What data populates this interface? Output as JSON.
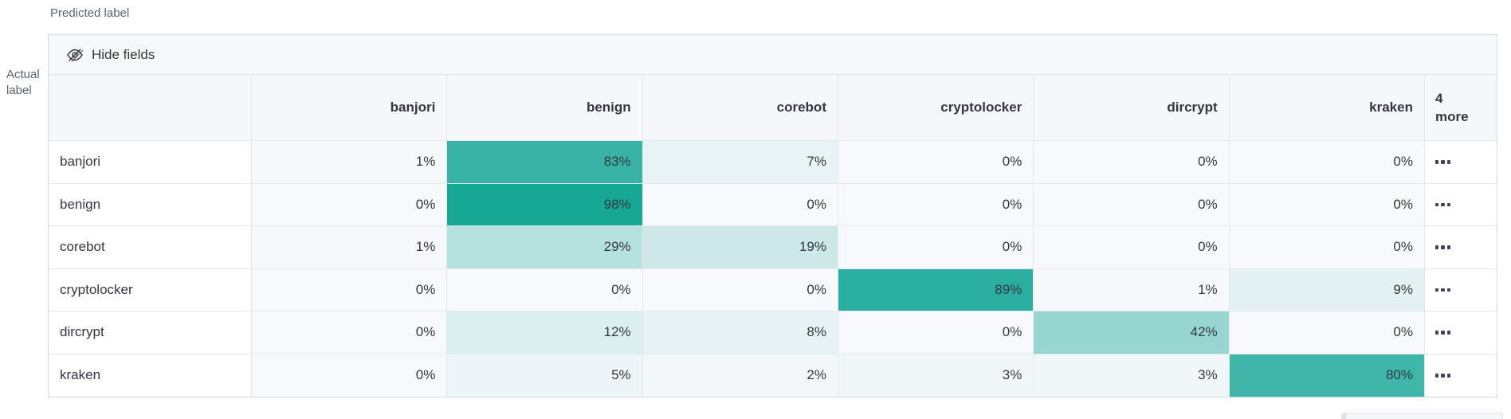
{
  "axes": {
    "predicted_label": "Predicted label",
    "actual_label_line1": "Actual",
    "actual_label_line2": "label"
  },
  "toolbar": {
    "hide_fields_label": "Hide fields",
    "icon": "eye-closed-icon"
  },
  "matrix": {
    "more_header_line1": "4",
    "more_header_line2": "more",
    "more_cell_icon": "boxes-horizontal-icon"
  },
  "colors": {
    "heat_min": "#f8f9fc",
    "heat_max": "#11a593",
    "toolbar_bg": "#f7f8fc",
    "header_bg": "#f5f7fa",
    "outer_border": "#d3dae6",
    "inner_border": "#e2e7f0",
    "text": "#343741",
    "axis_text": "#5b6271"
  },
  "chart_data": {
    "type": "heatmap",
    "x_axis_label": "Predicted label",
    "y_axis_label": "Actual label",
    "columns": [
      "banjori",
      "benign",
      "corebot",
      "cryptolocker",
      "dircrypt",
      "kraken"
    ],
    "hidden_columns": "4 more",
    "value_unit": "%",
    "color_scale": {
      "min": 0,
      "max": 100,
      "min_color": "#f8f9fc",
      "max_color": "#11a593"
    },
    "rows": [
      {
        "label": "banjori",
        "values": [
          1,
          83,
          7,
          0,
          0,
          0
        ]
      },
      {
        "label": "benign",
        "values": [
          0,
          98,
          0,
          0,
          0,
          0
        ]
      },
      {
        "label": "corebot",
        "values": [
          1,
          29,
          19,
          0,
          0,
          0
        ]
      },
      {
        "label": "cryptolocker",
        "values": [
          0,
          0,
          0,
          89,
          1,
          9
        ]
      },
      {
        "label": "dircrypt",
        "values": [
          0,
          12,
          8,
          0,
          42,
          0
        ]
      },
      {
        "label": "kraken",
        "values": [
          0,
          5,
          2,
          3,
          3,
          80
        ]
      }
    ]
  }
}
